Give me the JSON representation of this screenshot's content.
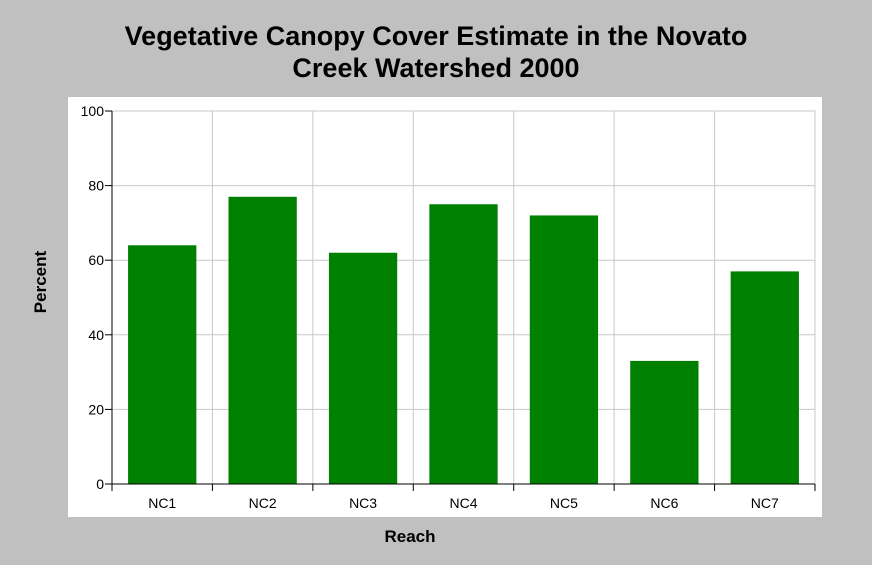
{
  "chart_data": {
    "type": "bar",
    "title_lines": [
      "Vegetative Canopy Cover Estimate in the Novato",
      "Creek Watershed 2000"
    ],
    "xlabel": "Reach",
    "ylabel": "Percent",
    "categories": [
      "NC1",
      "NC2",
      "NC3",
      "NC4",
      "NC5",
      "NC6",
      "NC7"
    ],
    "values": [
      64,
      77,
      62,
      75,
      72,
      33,
      57
    ],
    "ylim": [
      0,
      100
    ],
    "yticks": [
      0,
      20,
      40,
      60,
      80,
      100
    ],
    "grid": true,
    "bar_color": "#008000",
    "background_color": "#c0c0c0",
    "plot_background": "#ffffff",
    "grid_color": "#c8c8c8"
  }
}
